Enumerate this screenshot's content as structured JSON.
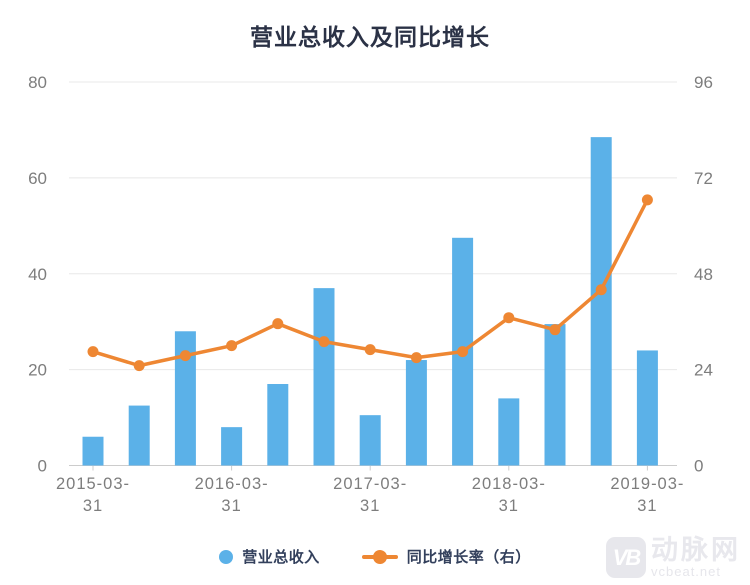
{
  "title": "营业总收入及同比增长",
  "legend": [
    {
      "label": "营业总收入",
      "type": "bar",
      "color": "#5bb1e8"
    },
    {
      "label": "同比增长率（右）",
      "type": "line",
      "color": "#ee8733"
    }
  ],
  "watermark": {
    "logo": "VB",
    "name": "动脉网",
    "site": "vcbeat.net"
  },
  "colors": {
    "bar": "#5bb1e8",
    "line": "#ee8733",
    "title_text": "#2b3246",
    "legend_text": "#33405c",
    "axis_label": "#7d7d7d",
    "gridline": "#e8e8e8",
    "axis_line": "#cccccc"
  },
  "chart_data": {
    "type": "bar",
    "combo": "bar + line (dual y-axis)",
    "title": "营业总收入及同比增长",
    "num_points": 13,
    "x_tick_labels": [
      "2015-03-31",
      "2016-03-31",
      "2017-03-31",
      "2018-03-31",
      "2019-03-31"
    ],
    "x_tick_indices": [
      0,
      3,
      6,
      9,
      12
    ],
    "series": [
      {
        "name": "营业总收入",
        "type": "bar",
        "axis": "left",
        "color": "#5bb1e8",
        "values": [
          6,
          12.5,
          28,
          8,
          17,
          37,
          10.5,
          22,
          47.5,
          14,
          29.5,
          68.5,
          24
        ]
      },
      {
        "name": "同比增长率（右）",
        "type": "line",
        "axis": "right",
        "color": "#ee8733",
        "values": [
          28.5,
          25,
          27.5,
          30,
          35.5,
          31,
          29,
          27,
          28.5,
          37,
          34,
          44,
          66.5
        ]
      }
    ],
    "left_axis": {
      "ticks": [
        0,
        20,
        40,
        60,
        80
      ],
      "range": [
        0,
        80
      ]
    },
    "right_axis": {
      "ticks": [
        0,
        24,
        48,
        72,
        96
      ],
      "range": [
        0,
        96
      ]
    },
    "grid": true,
    "legend_position": "bottom"
  }
}
